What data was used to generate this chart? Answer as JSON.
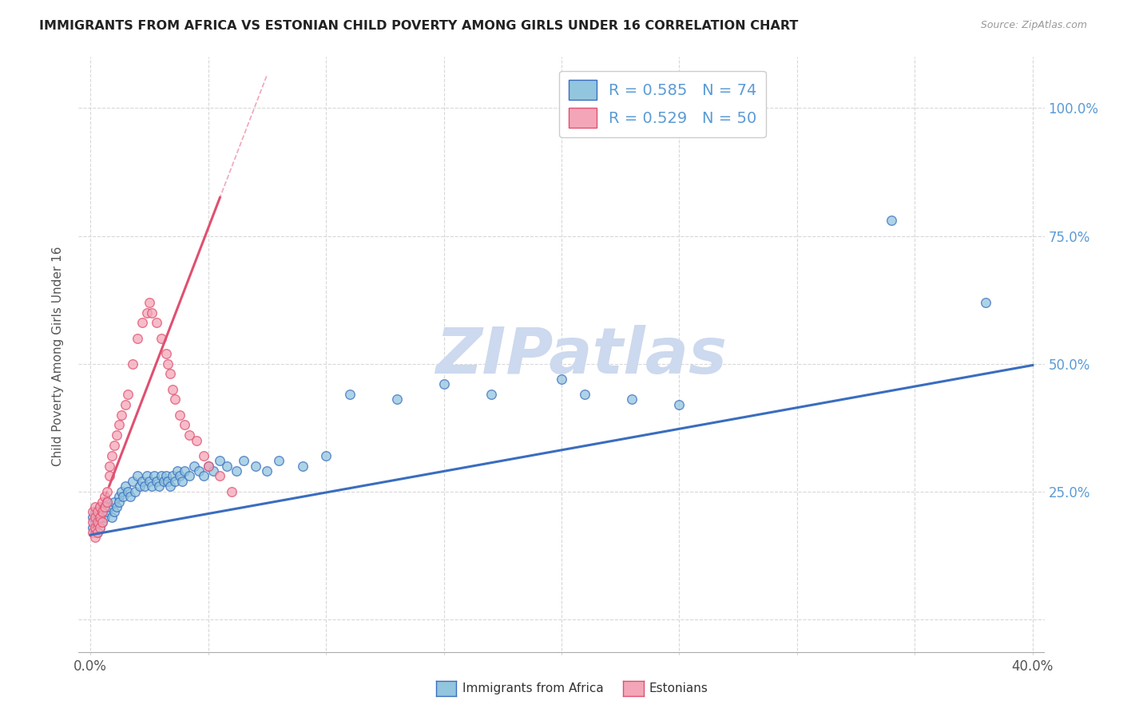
{
  "title": "IMMIGRANTS FROM AFRICA VS ESTONIAN CHILD POVERTY AMONG GIRLS UNDER 16 CORRELATION CHART",
  "source": "Source: ZipAtlas.com",
  "ylabel": "Child Poverty Among Girls Under 16",
  "legend1_label": "R = 0.585   N = 74",
  "legend2_label": "R = 0.529   N = 50",
  "series1_color": "#92c5de",
  "series2_color": "#f4a6b8",
  "trend1_color": "#3a6dbf",
  "trend2_color": "#e05070",
  "watermark": "ZIPatlas",
  "watermark_color": "#ccd9ee",
  "background_color": "#ffffff",
  "grid_color": "#d8d8d8",
  "title_color": "#222222",
  "right_axis_color": "#5b9bd5",
  "legend_text_color": "#5b9bd5",
  "bottom_label1": "Immigrants from Africa",
  "bottom_label2": "Estonians",
  "series1_x": [
    0.001,
    0.001,
    0.002,
    0.002,
    0.003,
    0.003,
    0.004,
    0.004,
    0.005,
    0.005,
    0.006,
    0.006,
    0.007,
    0.007,
    0.008,
    0.009,
    0.01,
    0.01,
    0.011,
    0.012,
    0.012,
    0.013,
    0.014,
    0.015,
    0.016,
    0.017,
    0.018,
    0.019,
    0.02,
    0.021,
    0.022,
    0.023,
    0.024,
    0.025,
    0.026,
    0.027,
    0.028,
    0.029,
    0.03,
    0.031,
    0.032,
    0.033,
    0.034,
    0.035,
    0.036,
    0.037,
    0.038,
    0.039,
    0.04,
    0.042,
    0.044,
    0.046,
    0.048,
    0.05,
    0.052,
    0.055,
    0.058,
    0.062,
    0.065,
    0.07,
    0.075,
    0.08,
    0.09,
    0.1,
    0.11,
    0.13,
    0.15,
    0.17,
    0.2,
    0.21,
    0.23,
    0.25,
    0.34,
    0.38
  ],
  "series1_y": [
    0.18,
    0.2,
    0.19,
    0.21,
    0.17,
    0.2,
    0.18,
    0.22,
    0.19,
    0.21,
    0.2,
    0.22,
    0.21,
    0.23,
    0.22,
    0.2,
    0.21,
    0.23,
    0.22,
    0.24,
    0.23,
    0.25,
    0.24,
    0.26,
    0.25,
    0.24,
    0.27,
    0.25,
    0.28,
    0.26,
    0.27,
    0.26,
    0.28,
    0.27,
    0.26,
    0.28,
    0.27,
    0.26,
    0.28,
    0.27,
    0.28,
    0.27,
    0.26,
    0.28,
    0.27,
    0.29,
    0.28,
    0.27,
    0.29,
    0.28,
    0.3,
    0.29,
    0.28,
    0.3,
    0.29,
    0.31,
    0.3,
    0.29,
    0.31,
    0.3,
    0.29,
    0.31,
    0.3,
    0.32,
    0.44,
    0.43,
    0.46,
    0.44,
    0.47,
    0.44,
    0.43,
    0.42,
    0.78,
    0.62
  ],
  "series2_x": [
    0.001,
    0.001,
    0.001,
    0.002,
    0.002,
    0.002,
    0.002,
    0.003,
    0.003,
    0.003,
    0.004,
    0.004,
    0.004,
    0.005,
    0.005,
    0.005,
    0.006,
    0.006,
    0.007,
    0.007,
    0.008,
    0.008,
    0.009,
    0.01,
    0.011,
    0.012,
    0.013,
    0.015,
    0.016,
    0.018,
    0.02,
    0.022,
    0.024,
    0.025,
    0.026,
    0.028,
    0.03,
    0.032,
    0.033,
    0.034,
    0.035,
    0.036,
    0.038,
    0.04,
    0.042,
    0.045,
    0.048,
    0.05,
    0.055,
    0.06
  ],
  "series2_y": [
    0.17,
    0.19,
    0.21,
    0.16,
    0.18,
    0.2,
    0.22,
    0.17,
    0.19,
    0.21,
    0.18,
    0.2,
    0.22,
    0.19,
    0.21,
    0.23,
    0.22,
    0.24,
    0.23,
    0.25,
    0.28,
    0.3,
    0.32,
    0.34,
    0.36,
    0.38,
    0.4,
    0.42,
    0.44,
    0.5,
    0.55,
    0.58,
    0.6,
    0.62,
    0.6,
    0.58,
    0.55,
    0.52,
    0.5,
    0.48,
    0.45,
    0.43,
    0.4,
    0.38,
    0.36,
    0.35,
    0.32,
    0.3,
    0.28,
    0.25
  ],
  "trend1_slope": 0.83,
  "trend1_intercept": 0.165,
  "trend2_slope": 12.0,
  "trend2_intercept": 0.165,
  "trend2_xmax": 0.075,
  "trend2_dashed_xmin": 0.0,
  "trend2_dashed_xmax": 0.075,
  "xlim": [
    -0.005,
    0.405
  ],
  "ylim": [
    -0.07,
    1.1
  ],
  "xticks": [
    0.0,
    0.05,
    0.1,
    0.15,
    0.2,
    0.25,
    0.3,
    0.35,
    0.4
  ],
  "yticks": [
    0.0,
    0.25,
    0.5,
    0.75,
    1.0
  ],
  "ytick_labels_right": [
    "",
    "25.0%",
    "50.0%",
    "75.0%",
    "100.0%"
  ]
}
